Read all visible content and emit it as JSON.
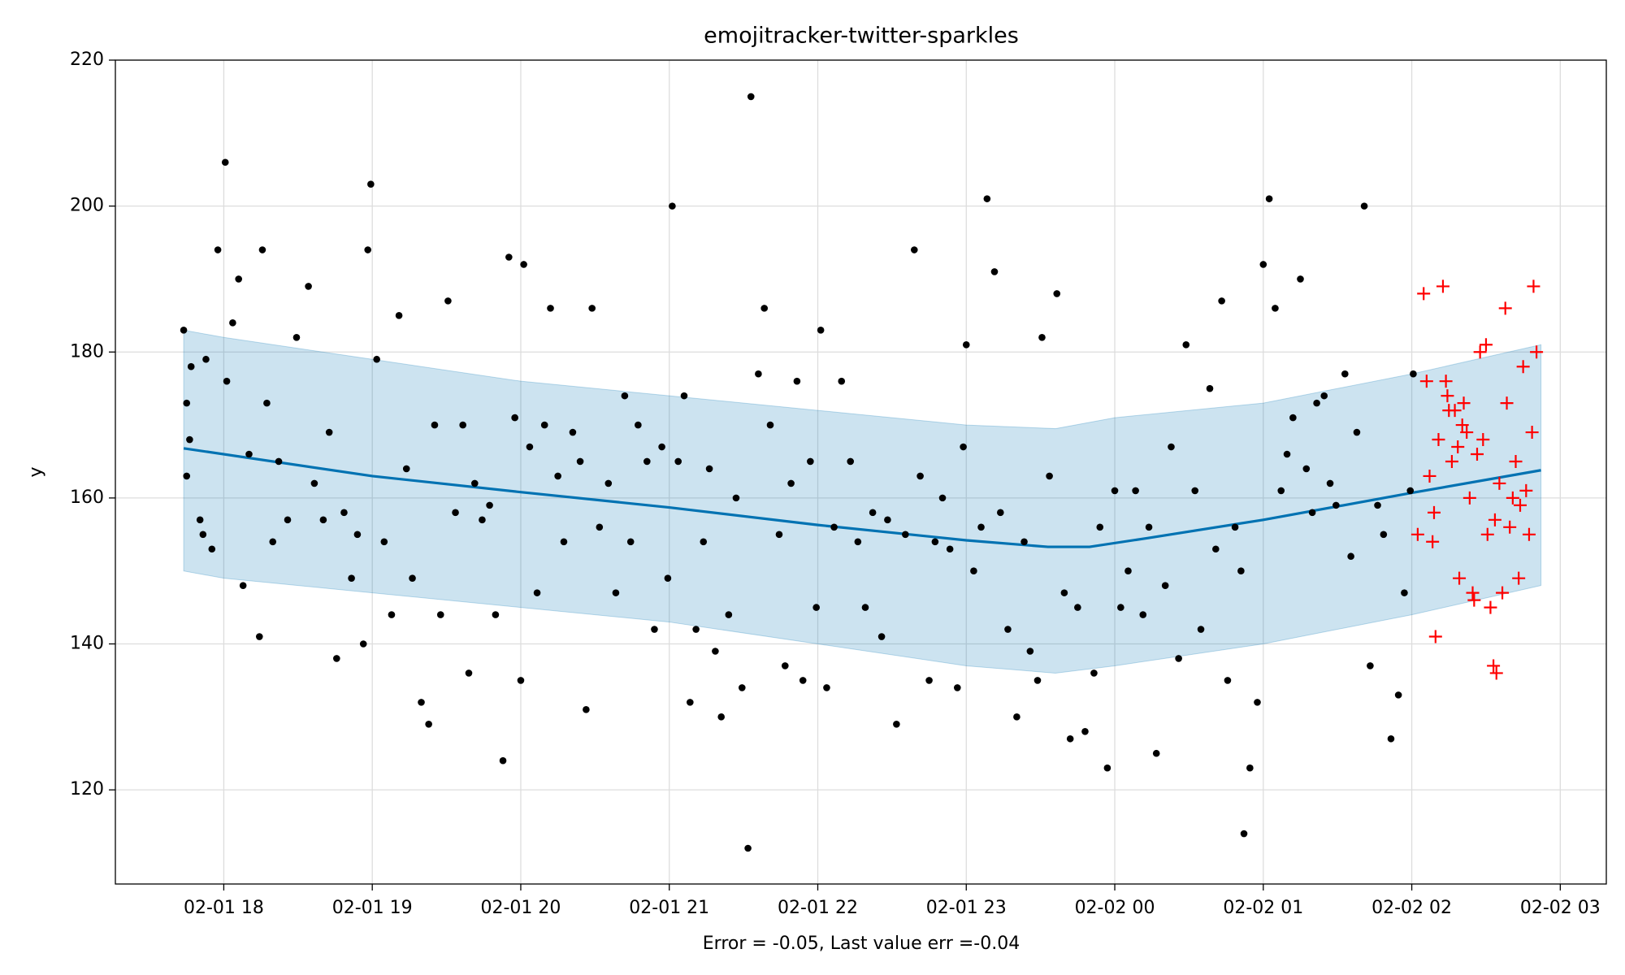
{
  "chart_data": {
    "type": "forecast",
    "title": "emojitracker-twitter-sparkles",
    "ylabel": "y",
    "xlabel": "Error = -0.05, Last value err =-0.04",
    "xlim": [
      17.27,
      27.31
    ],
    "ylim": [
      107.1,
      220
    ],
    "grid": true,
    "xticks": [
      {
        "value": 18,
        "label": "02-01 18"
      },
      {
        "value": 19,
        "label": "02-01 19"
      },
      {
        "value": 20,
        "label": "02-01 20"
      },
      {
        "value": 21,
        "label": "02-01 21"
      },
      {
        "value": 22,
        "label": "02-01 22"
      },
      {
        "value": 23,
        "label": "02-01 23"
      },
      {
        "value": 24,
        "label": "02-02 00"
      },
      {
        "value": 25,
        "label": "02-02 01"
      },
      {
        "value": 26,
        "label": "02-02 02"
      },
      {
        "value": 27,
        "label": "02-02 03"
      }
    ],
    "yticks": [
      120,
      140,
      160,
      180,
      200,
      220
    ],
    "band": {
      "color": "#0072b2",
      "x": [
        17.73,
        18,
        19,
        20,
        21,
        22,
        23,
        23.6,
        24,
        25,
        26,
        26.87
      ],
      "upper": [
        183,
        182,
        179,
        176,
        174,
        172,
        170,
        169.5,
        171,
        173,
        177,
        181
      ],
      "lower": [
        150,
        149,
        147,
        145,
        143,
        140,
        137,
        136,
        137,
        140,
        144,
        148
      ]
    },
    "series": [
      {
        "kind": "scatter",
        "marker": "dot",
        "color": "#000000",
        "x": [
          17.73,
          17.75,
          17.75,
          17.77,
          17.78,
          17.84,
          17.86,
          17.88,
          17.92,
          17.96,
          18.01,
          18.02,
          18.06,
          18.1,
          18.13,
          18.17,
          18.24,
          18.26,
          18.29,
          18.33,
          18.37,
          18.43,
          18.49,
          18.57,
          18.61,
          18.67,
          18.71,
          18.76,
          18.81,
          18.86,
          18.9,
          18.94,
          18.97,
          18.99,
          19.03,
          19.08,
          19.13,
          19.18,
          19.23,
          19.27,
          19.33,
          19.38,
          19.42,
          19.46,
          19.51,
          19.56,
          19.61,
          19.65,
          19.69,
          19.74,
          19.79,
          19.83,
          19.88,
          19.92,
          19.96,
          20,
          20.02,
          20.06,
          20.11,
          20.16,
          20.2,
          20.25,
          20.29,
          20.35,
          20.4,
          20.44,
          20.48,
          20.53,
          20.59,
          20.64,
          20.7,
          20.74,
          20.79,
          20.85,
          20.9,
          20.95,
          20.99,
          21.02,
          21.06,
          21.1,
          21.14,
          21.18,
          21.23,
          21.27,
          21.31,
          21.35,
          21.4,
          21.45,
          21.49,
          21.53,
          21.55,
          21.6,
          21.64,
          21.68,
          21.74,
          21.78,
          21.82,
          21.86,
          21.9,
          21.95,
          21.99,
          22.02,
          22.06,
          22.11,
          22.16,
          22.22,
          22.27,
          22.32,
          22.37,
          22.43,
          22.47,
          22.53,
          22.59,
          22.65,
          22.69,
          22.75,
          22.79,
          22.84,
          22.89,
          22.94,
          22.98,
          23.0,
          23.05,
          23.1,
          23.14,
          23.19,
          23.23,
          23.28,
          23.34,
          23.39,
          23.43,
          23.48,
          23.51,
          23.56,
          23.61,
          23.66,
          23.7,
          23.75,
          23.8,
          23.86,
          23.9,
          23.95,
          24,
          24.04,
          24.09,
          24.14,
          24.19,
          24.23,
          24.28,
          24.34,
          24.38,
          24.43,
          24.48,
          24.54,
          24.58,
          24.64,
          24.68,
          24.72,
          24.76,
          24.81,
          24.85,
          24.87,
          24.91,
          24.96,
          25.0,
          25.04,
          25.08,
          25.12,
          25.16,
          25.2,
          25.25,
          25.29,
          25.33,
          25.36,
          25.41,
          25.45,
          25.49,
          25.55,
          25.59,
          25.63,
          25.68,
          25.72,
          25.77,
          25.81,
          25.86,
          25.91,
          25.95,
          25.99,
          26.01
        ],
        "values": [
          183,
          163,
          173,
          168,
          178,
          157,
          155,
          179,
          153,
          194,
          206,
          176,
          184,
          190,
          148,
          166,
          141,
          194,
          173,
          154,
          165,
          157,
          182,
          189,
          162,
          157,
          169,
          138,
          158,
          149,
          155,
          140,
          194,
          203,
          179,
          154,
          144,
          185,
          164,
          149,
          132,
          129,
          170,
          144,
          187,
          158,
          170,
          136,
          162,
          157,
          159,
          144,
          124,
          193,
          171,
          135,
          192,
          167,
          147,
          170,
          186,
          163,
          154,
          169,
          165,
          131,
          186,
          156,
          162,
          147,
          174,
          154,
          170,
          165,
          142,
          167,
          149,
          200,
          165,
          174,
          132,
          142,
          154,
          164,
          139,
          130,
          144,
          160,
          134,
          112,
          215,
          177,
          186,
          170,
          155,
          137,
          162,
          176,
          135,
          165,
          145,
          183,
          134,
          156,
          176,
          165,
          154,
          145,
          158,
          141,
          157,
          129,
          155,
          194,
          163,
          135,
          154,
          160,
          153,
          134,
          167,
          181,
          150,
          156,
          201,
          191,
          158,
          142,
          130,
          154,
          139,
          135,
          182,
          163,
          188,
          147,
          127,
          145,
          128,
          136,
          156,
          123,
          161,
          145,
          150,
          161,
          144,
          156,
          125,
          148,
          167,
          138,
          181,
          161,
          142,
          175,
          153,
          187,
          135,
          156,
          150,
          114,
          123,
          132,
          192,
          201,
          186,
          161,
          166,
          171,
          190,
          164,
          158,
          173,
          174,
          162,
          159,
          177,
          152,
          169,
          200,
          137,
          159,
          155,
          127,
          133,
          147,
          161,
          177
        ]
      },
      {
        "kind": "scatter",
        "marker": "plus",
        "color": "#ff0000",
        "x": [
          26.04,
          26.08,
          26.1,
          26.12,
          26.14,
          26.15,
          26.16,
          26.18,
          26.21,
          26.23,
          26.24,
          26.25,
          26.27,
          26.29,
          26.31,
          26.32,
          26.34,
          26.35,
          26.37,
          26.39,
          26.41,
          26.42,
          26.44,
          26.46,
          26.48,
          26.5,
          26.51,
          26.53,
          26.55,
          26.56,
          26.57,
          26.59,
          26.61,
          26.63,
          26.64,
          26.66,
          26.68,
          26.7,
          26.72,
          26.73,
          26.75,
          26.77,
          26.79,
          26.81,
          26.82,
          26.84
        ],
        "values": [
          155,
          188,
          176,
          163,
          154,
          158,
          141,
          168,
          189,
          176,
          174,
          172,
          165,
          172,
          167,
          149,
          170,
          173,
          169,
          160,
          147,
          146,
          166,
          180,
          168,
          181,
          155,
          145,
          137,
          157,
          136,
          162,
          147,
          186,
          173,
          156,
          160,
          165,
          149,
          159,
          178,
          161,
          155,
          169,
          189,
          180
        ]
      },
      {
        "kind": "line",
        "color": "#0072b2",
        "x": [
          17.73,
          19,
          20,
          21,
          22,
          23,
          23.55,
          23.83,
          24.22,
          25,
          26,
          26.87
        ],
        "values": [
          166.8,
          163,
          160.8,
          158.7,
          156.3,
          154.2,
          153.3,
          153.3,
          154.5,
          157,
          160.7,
          163.8
        ]
      }
    ]
  }
}
